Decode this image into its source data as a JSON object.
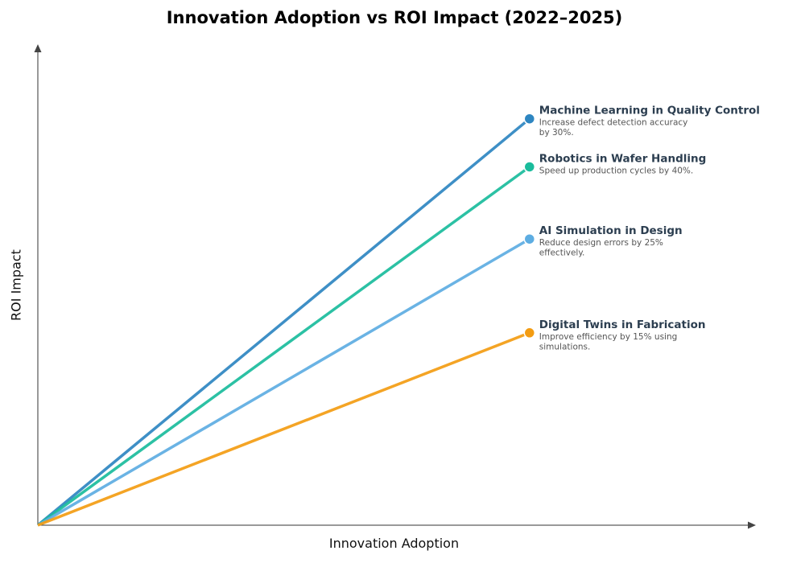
{
  "chart_data": {
    "type": "line",
    "title": "Innovation Adoption vs ROI Impact (2022–2025)",
    "xlabel": "Innovation Adoption",
    "ylabel": "ROI Impact",
    "xlim": [
      0,
      1.02
    ],
    "ylim": [
      0,
      1
    ],
    "grid": false,
    "series": [
      {
        "name": "Machine Learning in Quality Control",
        "description": [
          "Increase defect detection accuracy",
          "by 30%."
        ],
        "color": "#2e86c1",
        "x": [
          0,
          0.7
        ],
        "y": [
          0,
          0.845
        ]
      },
      {
        "name": "Robotics in Wafer Handling",
        "description": [
          "Speed up production cycles by 40%."
        ],
        "color": "#1abc9c",
        "x": [
          0,
          0.7
        ],
        "y": [
          0,
          0.745
        ]
      },
      {
        "name": "AI Simulation in Design",
        "description": [
          "Reduce design errors by 25%",
          "effectively."
        ],
        "color": "#5dade2",
        "x": [
          0,
          0.7
        ],
        "y": [
          0,
          0.595
        ]
      },
      {
        "name": "Digital Twins in Fabrication",
        "description": [
          "Improve efficiency by 15% using",
          "simulations."
        ],
        "color": "#f39c12",
        "x": [
          0,
          0.7
        ],
        "y": [
          0,
          0.4
        ]
      }
    ]
  }
}
